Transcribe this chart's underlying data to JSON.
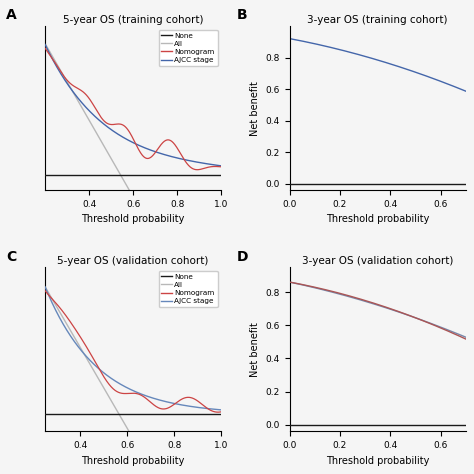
{
  "title_A": "5-year OS (training cohort)",
  "title_B": "3-year OS (training cohort)",
  "title_C": "5-year OS (validation cohort)",
  "title_D": "3-year OS (validation cohort)",
  "label_A": "A",
  "label_B": "B",
  "label_C": "C",
  "label_D": "D",
  "xlabel": "Threshold probability",
  "ylabel": "Net benefit",
  "colors": {
    "none": "#1a1a1a",
    "all_gray": "#b8b8b8",
    "nomogram_red": "#cc4444",
    "ajcc_blue": "#4466aa",
    "ajcc_C_blue": "#6688bb",
    "all_B_blue": "#7799cc",
    "nom_D": "#aa5555",
    "ajcc_D": "#7788aa"
  },
  "bg_color": "#f5f5f5"
}
